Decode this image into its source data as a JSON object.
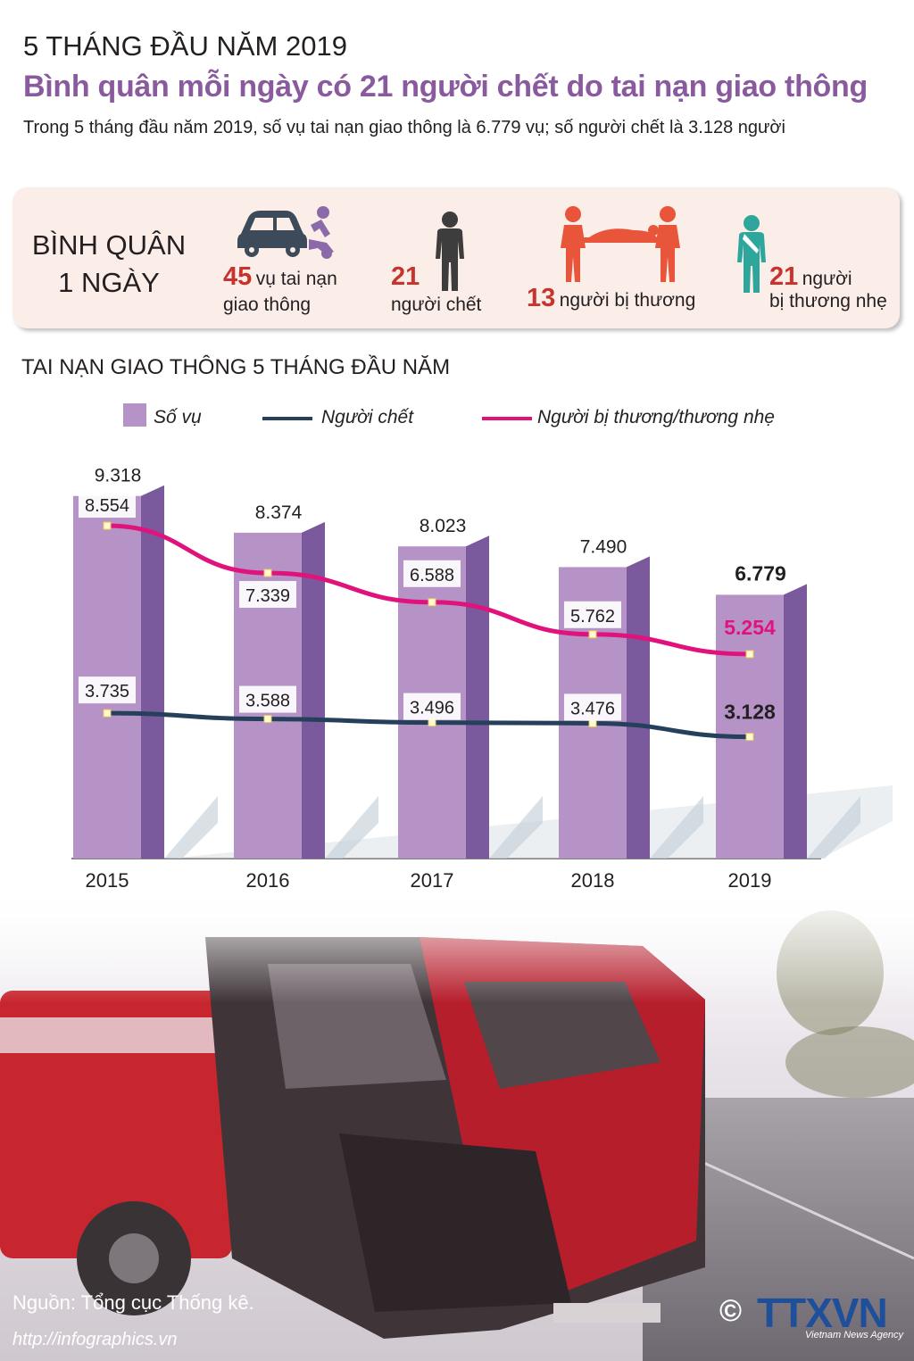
{
  "header": {
    "kicker": "5 THÁNG ĐẦU NĂM 2019",
    "headline": "Bình quân mỗi ngày có 21 người chết do tai nạn giao thông",
    "intro": "Trong 5 tháng đầu năm 2019, số vụ tai nạn giao thông là 6.779 vụ; số người chết là 3.128 người"
  },
  "daily": {
    "label_line1": "BÌNH QUÂN",
    "label_line2": "1 NGÀY",
    "items": [
      {
        "icon": "car-crash-icon",
        "number": "45",
        "text_a": "vụ tai nạn",
        "text_b": "giao thông"
      },
      {
        "icon": "person-icon",
        "number": "21",
        "text_a": "người chết"
      },
      {
        "icon": "stretcher-icon",
        "number": "13",
        "text_a": "người bị thương"
      },
      {
        "icon": "sling-arm-icon",
        "number": "21",
        "text_a": "người",
        "text_b": "bị thương nhẹ"
      }
    ]
  },
  "colors": {
    "bar": "#b693c7",
    "bar_side": "#7a5a9c",
    "deaths_line": "#24405a",
    "injured_line": "#e0137d",
    "headline": "#8a5a9e",
    "stat_number": "#c8332d"
  },
  "chart_data": {
    "type": "bar",
    "title": "TAI NẠN GIAO THÔNG 5 THÁNG ĐẦU NĂM",
    "categories": [
      "2015",
      "2016",
      "2017",
      "2018",
      "2019"
    ],
    "series": [
      {
        "name": "Số vụ",
        "kind": "bar",
        "values": [
          9318,
          8374,
          8023,
          7490,
          6779
        ],
        "labels": [
          "9.318",
          "8.374",
          "8.023",
          "7.490",
          "6.779"
        ]
      },
      {
        "name": "Người chết",
        "kind": "line",
        "values": [
          3735,
          3588,
          3496,
          3476,
          3128
        ],
        "labels": [
          "3.735",
          "3.588",
          "3.496",
          "3.476",
          "3.128"
        ]
      },
      {
        "name": "Người bị thương/thương nhẹ",
        "kind": "line",
        "values": [
          8554,
          7339,
          6588,
          5762,
          5254
        ],
        "labels": [
          "8.554",
          "7.339",
          "6.588",
          "5.762",
          "5.254"
        ]
      }
    ],
    "legend_position": "top"
  },
  "footer": {
    "source": "Nguồn: Tổng cục Thống kê.",
    "url": "http://infographics.vn",
    "copyright_symbol": "©",
    "brand": "TTXVN",
    "brand_sub": "Vietnam News Agency"
  }
}
